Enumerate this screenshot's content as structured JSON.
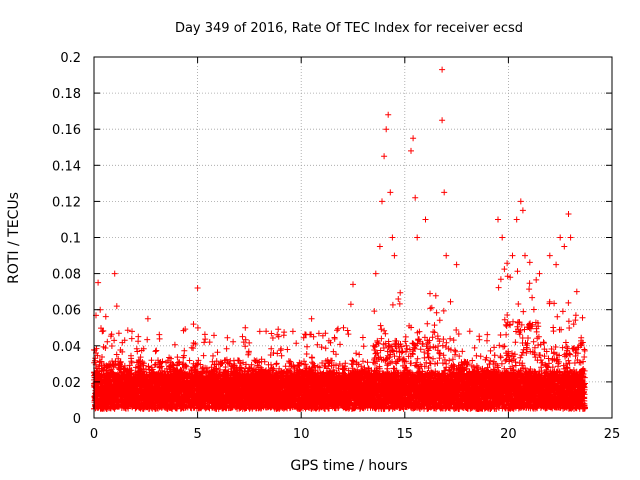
{
  "chart_data": {
    "type": "scatter",
    "title": "Day 349 of 2016, Rate Of TEC Index for receiver ecsd",
    "xlabel": "GPS time / hours",
    "ylabel": "ROTI / TECUs",
    "xlim": [
      0,
      25
    ],
    "ylim": [
      0,
      0.2
    ],
    "xticks": [
      0,
      5,
      10,
      15,
      20,
      25
    ],
    "xtick_labels": [
      "0",
      "5",
      "10",
      "15",
      "20",
      "25"
    ],
    "yticks": [
      0,
      0.02,
      0.04,
      0.06,
      0.08,
      0.1,
      0.12,
      0.14,
      0.16,
      0.18,
      0.2
    ],
    "ytick_labels": [
      "0",
      "0.02",
      "0.04",
      "0.06",
      "0.08",
      "0.1",
      "0.12",
      "0.14",
      "0.16",
      "0.18",
      "0.2"
    ],
    "grid": true,
    "marker": "+",
    "marker_color": "#ff0000",
    "series": [
      {
        "x": [
          0.2,
          0.3,
          0.4,
          1.0,
          1.1,
          1.2,
          2.6,
          4.8,
          5.0,
          7.3,
          8.0,
          9.6,
          10.5,
          10.6,
          12.4,
          12.5,
          13.6,
          13.8,
          13.9,
          14.0,
          14.1,
          14.2,
          14.3,
          14.4,
          14.5,
          15.3,
          15.4,
          15.5,
          15.6,
          16.0,
          16.8,
          16.8,
          16.9,
          17.0,
          17.5,
          19.5,
          19.7,
          20.2,
          20.4,
          20.6,
          20.7,
          20.8,
          21.5,
          22.0,
          22.3,
          22.5,
          22.7,
          22.9,
          23.0,
          23.3
        ],
        "y": [
          0.075,
          0.06,
          0.048,
          0.08,
          0.062,
          0.047,
          0.055,
          0.052,
          0.072,
          0.05,
          0.048,
          0.048,
          0.055,
          0.045,
          0.063,
          0.074,
          0.08,
          0.095,
          0.12,
          0.145,
          0.16,
          0.168,
          0.125,
          0.1,
          0.09,
          0.148,
          0.155,
          0.122,
          0.1,
          0.11,
          0.193,
          0.165,
          0.125,
          0.09,
          0.085,
          0.11,
          0.1,
          0.09,
          0.11,
          0.12,
          0.115,
          0.09,
          0.08,
          0.09,
          0.085,
          0.1,
          0.095,
          0.113,
          0.1,
          0.07
        ],
        "note": "dense band of thousands of points between 0.005 and ~0.04 across 0-23.7 h"
      }
    ]
  }
}
